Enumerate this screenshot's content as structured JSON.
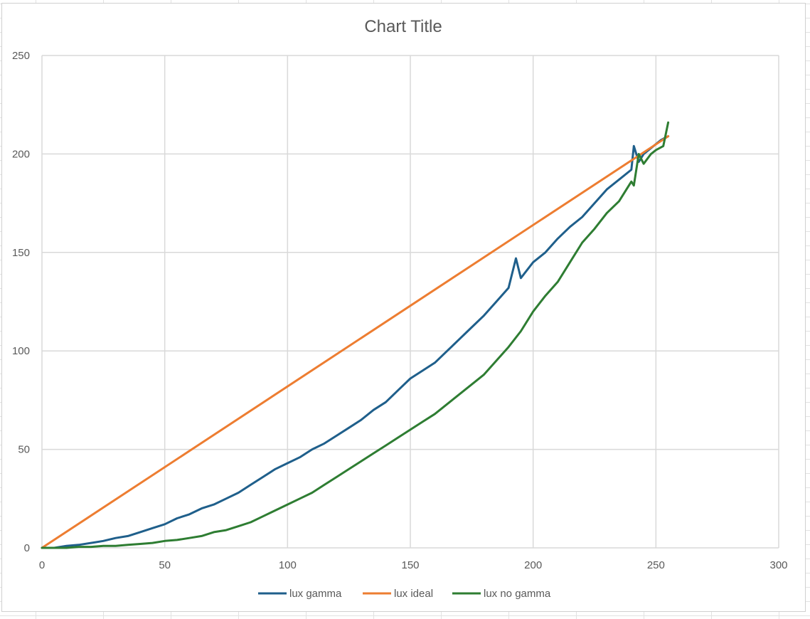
{
  "chart_data": {
    "type": "line",
    "title": "Chart Title",
    "xlabel": "",
    "ylabel": "",
    "xlim": [
      0,
      300
    ],
    "ylim": [
      0,
      250
    ],
    "x_ticks": [
      "0",
      "50",
      "100",
      "150",
      "200",
      "250",
      "300"
    ],
    "y_ticks": [
      "0",
      "50",
      "100",
      "150",
      "200",
      "250"
    ],
    "grid": true,
    "legend_position": "bottom",
    "series": [
      {
        "name": "lux gamma",
        "color": "#1f5f8b",
        "points": [
          [
            0,
            0
          ],
          [
            5,
            0
          ],
          [
            10,
            1
          ],
          [
            15,
            1.5
          ],
          [
            20,
            2.5
          ],
          [
            25,
            3.5
          ],
          [
            30,
            5
          ],
          [
            35,
            6
          ],
          [
            40,
            8
          ],
          [
            45,
            10
          ],
          [
            50,
            12
          ],
          [
            55,
            15
          ],
          [
            60,
            17
          ],
          [
            65,
            20
          ],
          [
            70,
            22
          ],
          [
            75,
            25
          ],
          [
            80,
            28
          ],
          [
            85,
            32
          ],
          [
            90,
            36
          ],
          [
            95,
            40
          ],
          [
            100,
            43
          ],
          [
            105,
            46
          ],
          [
            110,
            50
          ],
          [
            115,
            53
          ],
          [
            120,
            57
          ],
          [
            125,
            61
          ],
          [
            130,
            65
          ],
          [
            135,
            70
          ],
          [
            140,
            74
          ],
          [
            145,
            80
          ],
          [
            150,
            86
          ],
          [
            155,
            90
          ],
          [
            160,
            94
          ],
          [
            165,
            100
          ],
          [
            170,
            106
          ],
          [
            175,
            112
          ],
          [
            180,
            118
          ],
          [
            185,
            125
          ],
          [
            190,
            132
          ],
          [
            193,
            147
          ],
          [
            195,
            137
          ],
          [
            200,
            145
          ],
          [
            205,
            150
          ],
          [
            210,
            157
          ],
          [
            215,
            163
          ],
          [
            220,
            168
          ],
          [
            225,
            175
          ],
          [
            230,
            182
          ],
          [
            235,
            187
          ],
          [
            240,
            192
          ],
          [
            241,
            204
          ],
          [
            243,
            196
          ],
          [
            245,
            200
          ],
          [
            250,
            205
          ],
          [
            252,
            207
          ],
          [
            255,
            209
          ]
        ]
      },
      {
        "name": "lux ideal",
        "color": "#ed7d31",
        "points": [
          [
            0,
            0
          ],
          [
            255,
            209
          ]
        ]
      },
      {
        "name": "lux no gamma",
        "color": "#2e7d32",
        "points": [
          [
            0,
            0
          ],
          [
            5,
            0
          ],
          [
            10,
            0
          ],
          [
            15,
            0.5
          ],
          [
            20,
            0.5
          ],
          [
            25,
            1
          ],
          [
            30,
            1
          ],
          [
            35,
            1.5
          ],
          [
            40,
            2
          ],
          [
            45,
            2.5
          ],
          [
            50,
            3.5
          ],
          [
            55,
            4
          ],
          [
            60,
            5
          ],
          [
            65,
            6
          ],
          [
            70,
            8
          ],
          [
            75,
            9
          ],
          [
            80,
            11
          ],
          [
            85,
            13
          ],
          [
            90,
            16
          ],
          [
            95,
            19
          ],
          [
            100,
            22
          ],
          [
            105,
            25
          ],
          [
            110,
            28
          ],
          [
            115,
            32
          ],
          [
            120,
            36
          ],
          [
            125,
            40
          ],
          [
            130,
            44
          ],
          [
            135,
            48
          ],
          [
            140,
            52
          ],
          [
            145,
            56
          ],
          [
            150,
            60
          ],
          [
            155,
            64
          ],
          [
            160,
            68
          ],
          [
            165,
            73
          ],
          [
            170,
            78
          ],
          [
            175,
            83
          ],
          [
            180,
            88
          ],
          [
            185,
            95
          ],
          [
            190,
            102
          ],
          [
            195,
            110
          ],
          [
            200,
            120
          ],
          [
            205,
            128
          ],
          [
            210,
            135
          ],
          [
            215,
            145
          ],
          [
            220,
            155
          ],
          [
            225,
            162
          ],
          [
            230,
            170
          ],
          [
            235,
            176
          ],
          [
            240,
            186
          ],
          [
            241,
            184
          ],
          [
            243,
            200
          ],
          [
            245,
            195
          ],
          [
            248,
            200
          ],
          [
            250,
            202
          ],
          [
            253,
            204
          ],
          [
            255,
            216
          ]
        ]
      }
    ]
  }
}
